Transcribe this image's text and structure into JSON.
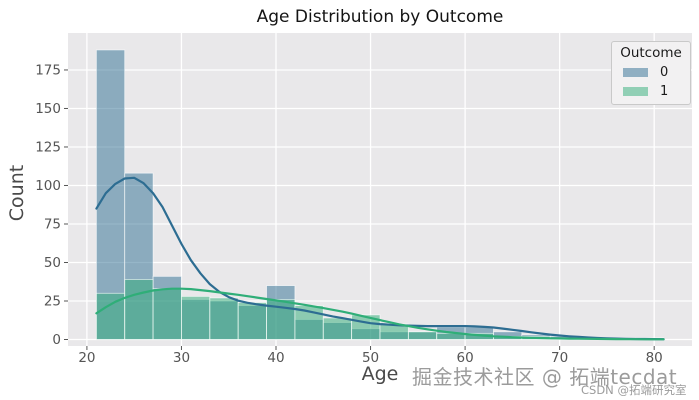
{
  "legend": {
    "title": "Outcome",
    "items": [
      {
        "label": "0",
        "color": "#2d6d92"
      },
      {
        "label": "1",
        "color": "#2fae78"
      }
    ]
  },
  "watermark": {
    "main": "掘金技术社区 @ 拓端tecdat",
    "sub": "CSDN @拓端研究室"
  },
  "chart_data": {
    "type": "histogram",
    "title": "Age Distribution by Outcome",
    "xlabel": "Age",
    "ylabel": "Count",
    "background": "#e9e8ea",
    "grid": true,
    "grid_color": "#ffffff",
    "legend_position": "upper right",
    "bin_start": 21,
    "bin_width": 3,
    "xlim": [
      18,
      84
    ],
    "ylim": [
      0,
      199
    ],
    "x_ticks": [
      20,
      30,
      40,
      50,
      60,
      70,
      80
    ],
    "y_ticks": [
      0,
      25,
      50,
      75,
      100,
      125,
      150,
      175
    ],
    "kde_x": [
      21,
      22,
      23,
      24,
      25,
      26,
      27,
      28,
      29,
      30,
      31,
      32,
      33,
      34,
      35,
      36,
      37,
      38,
      39,
      40,
      41,
      42,
      43,
      44,
      45,
      46,
      47,
      48,
      49,
      50,
      51,
      52,
      53,
      54,
      55,
      56,
      57,
      58,
      59,
      60,
      61,
      62,
      63,
      64,
      65,
      66,
      67,
      68,
      69,
      70,
      71,
      72,
      73,
      74,
      75,
      76,
      77,
      78,
      79,
      80,
      81
    ],
    "series": [
      {
        "name": "0",
        "color": "#2d6d92",
        "counts": [
          188,
          108,
          41,
          26,
          25,
          22,
          35,
          13,
          11,
          7,
          5,
          5,
          8,
          8,
          5,
          3,
          2,
          1,
          1,
          1
        ],
        "kde_y": [
          85,
          95,
          101,
          104.5,
          105,
          101.5,
          95,
          86,
          74,
          62,
          51.5,
          43,
          36,
          31,
          27.5,
          25.2,
          23.8,
          22.8,
          22,
          21.3,
          20.6,
          19.8,
          18.8,
          17.6,
          16.3,
          15,
          13.9,
          12.8,
          11.6,
          10.6,
          10,
          9.6,
          9.2,
          9,
          8.8,
          8.7,
          8.7,
          8.7,
          8.7,
          8.7,
          8.5,
          8.2,
          7.8,
          7.1,
          6.3,
          5.5,
          4.7,
          3.9,
          3.2,
          2.6,
          2.1,
          1.7,
          1.3,
          1.0,
          0.8,
          0.6,
          0.45,
          0.35,
          0.3,
          0.25,
          0.2
        ]
      },
      {
        "name": "1",
        "color": "#2fae78",
        "counts": [
          30,
          39,
          33,
          28,
          27,
          24,
          26,
          22,
          14,
          16,
          10,
          5,
          4,
          4,
          2,
          2,
          1,
          1,
          0,
          1
        ],
        "kde_y": [
          17,
          21,
          24.5,
          27,
          29,
          30.5,
          31.8,
          32.6,
          33,
          33,
          32.7,
          32.1,
          31.4,
          30.6,
          29.8,
          29,
          28.1,
          27.2,
          26.3,
          25.4,
          24.5,
          23.5,
          22.5,
          21.5,
          20.4,
          19.3,
          18.1,
          16.8,
          15.4,
          14,
          12.6,
          11.2,
          9.9,
          8.7,
          7.6,
          6.6,
          5.7,
          4.9,
          4.2,
          3.6,
          3.0,
          2.5,
          2.1,
          1.8,
          1.5,
          1.3,
          1.1,
          0.95,
          0.8,
          0.7,
          0.6,
          0.5,
          0.45,
          0.4,
          0.3,
          0.25,
          0.2,
          0.17,
          0.14,
          0.12,
          0.1
        ]
      }
    ]
  }
}
